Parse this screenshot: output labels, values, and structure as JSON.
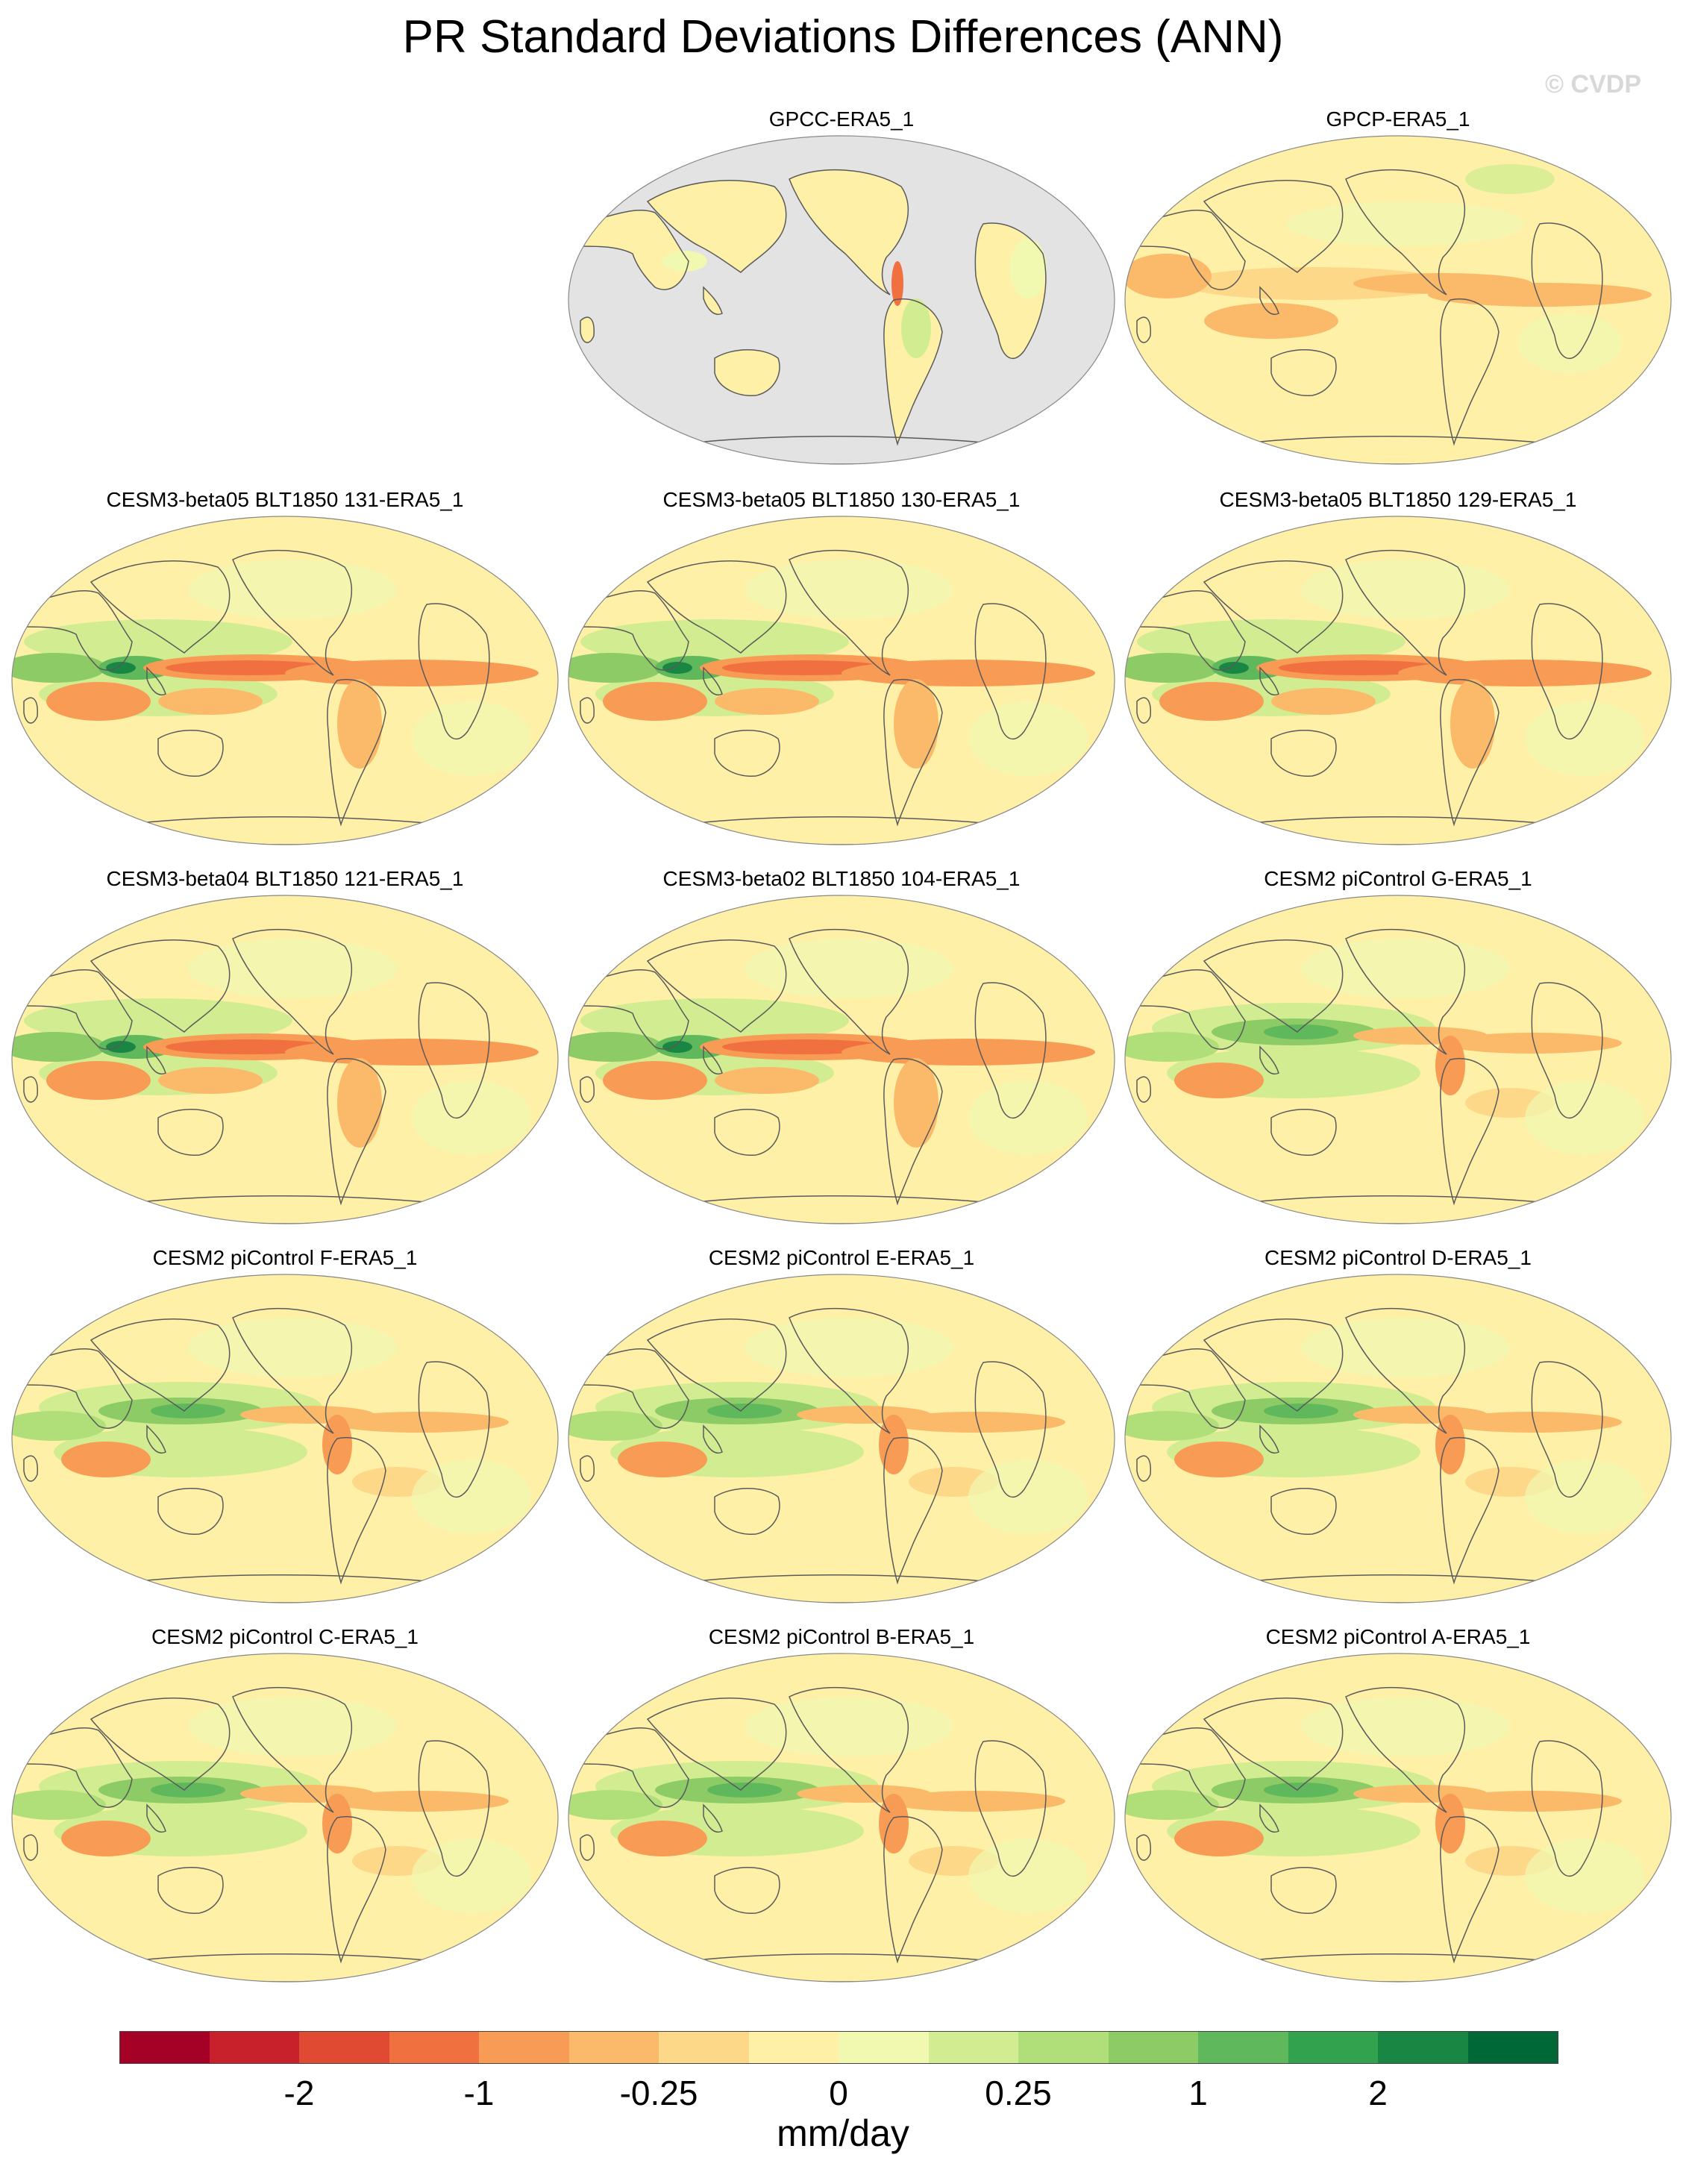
{
  "title": "PR Standard Deviations Differences (ANN)",
  "watermark": "© CVDP",
  "units": "mm/day",
  "colorbar": {
    "colors": [
      "#a50026",
      "#c8212c",
      "#e04a33",
      "#f1703f",
      "#f89b55",
      "#fbb96a",
      "#fdd889",
      "#fff0a8",
      "#f1f8b0",
      "#d2ed91",
      "#b0de78",
      "#8ccb66",
      "#5fb85b",
      "#33a24f",
      "#1a8643",
      "#006837"
    ],
    "tick_labels": [
      "-2",
      "-1",
      "-0.25",
      "0",
      "0.25",
      "1",
      "2"
    ]
  },
  "panels": [
    {
      "title": "GPCC-ERA5_1",
      "style": "land"
    },
    {
      "title": "GPCP-ERA5_1",
      "style": "obs"
    },
    {
      "title": "CESM3-beta05 BLT1850 131-ERA5_1",
      "style": "beta"
    },
    {
      "title": "CESM3-beta05 BLT1850 130-ERA5_1",
      "style": "beta"
    },
    {
      "title": "CESM3-beta05 BLT1850 129-ERA5_1",
      "style": "beta"
    },
    {
      "title": "CESM3-beta04 BLT1850 121-ERA5_1",
      "style": "beta"
    },
    {
      "title": "CESM3-beta02 BLT1850 104-ERA5_1",
      "style": "beta"
    },
    {
      "title": "CESM2 piControl G-ERA5_1",
      "style": "cesm2"
    },
    {
      "title": "CESM2 piControl F-ERA5_1",
      "style": "cesm2"
    },
    {
      "title": "CESM2 piControl E-ERA5_1",
      "style": "cesm2"
    },
    {
      "title": "CESM2 piControl D-ERA5_1",
      "style": "cesm2"
    },
    {
      "title": "CESM2 piControl C-ERA5_1",
      "style": "cesm2"
    },
    {
      "title": "CESM2 piControl B-ERA5_1",
      "style": "cesm2"
    },
    {
      "title": "CESM2 piControl A-ERA5_1",
      "style": "cesm2"
    }
  ]
}
